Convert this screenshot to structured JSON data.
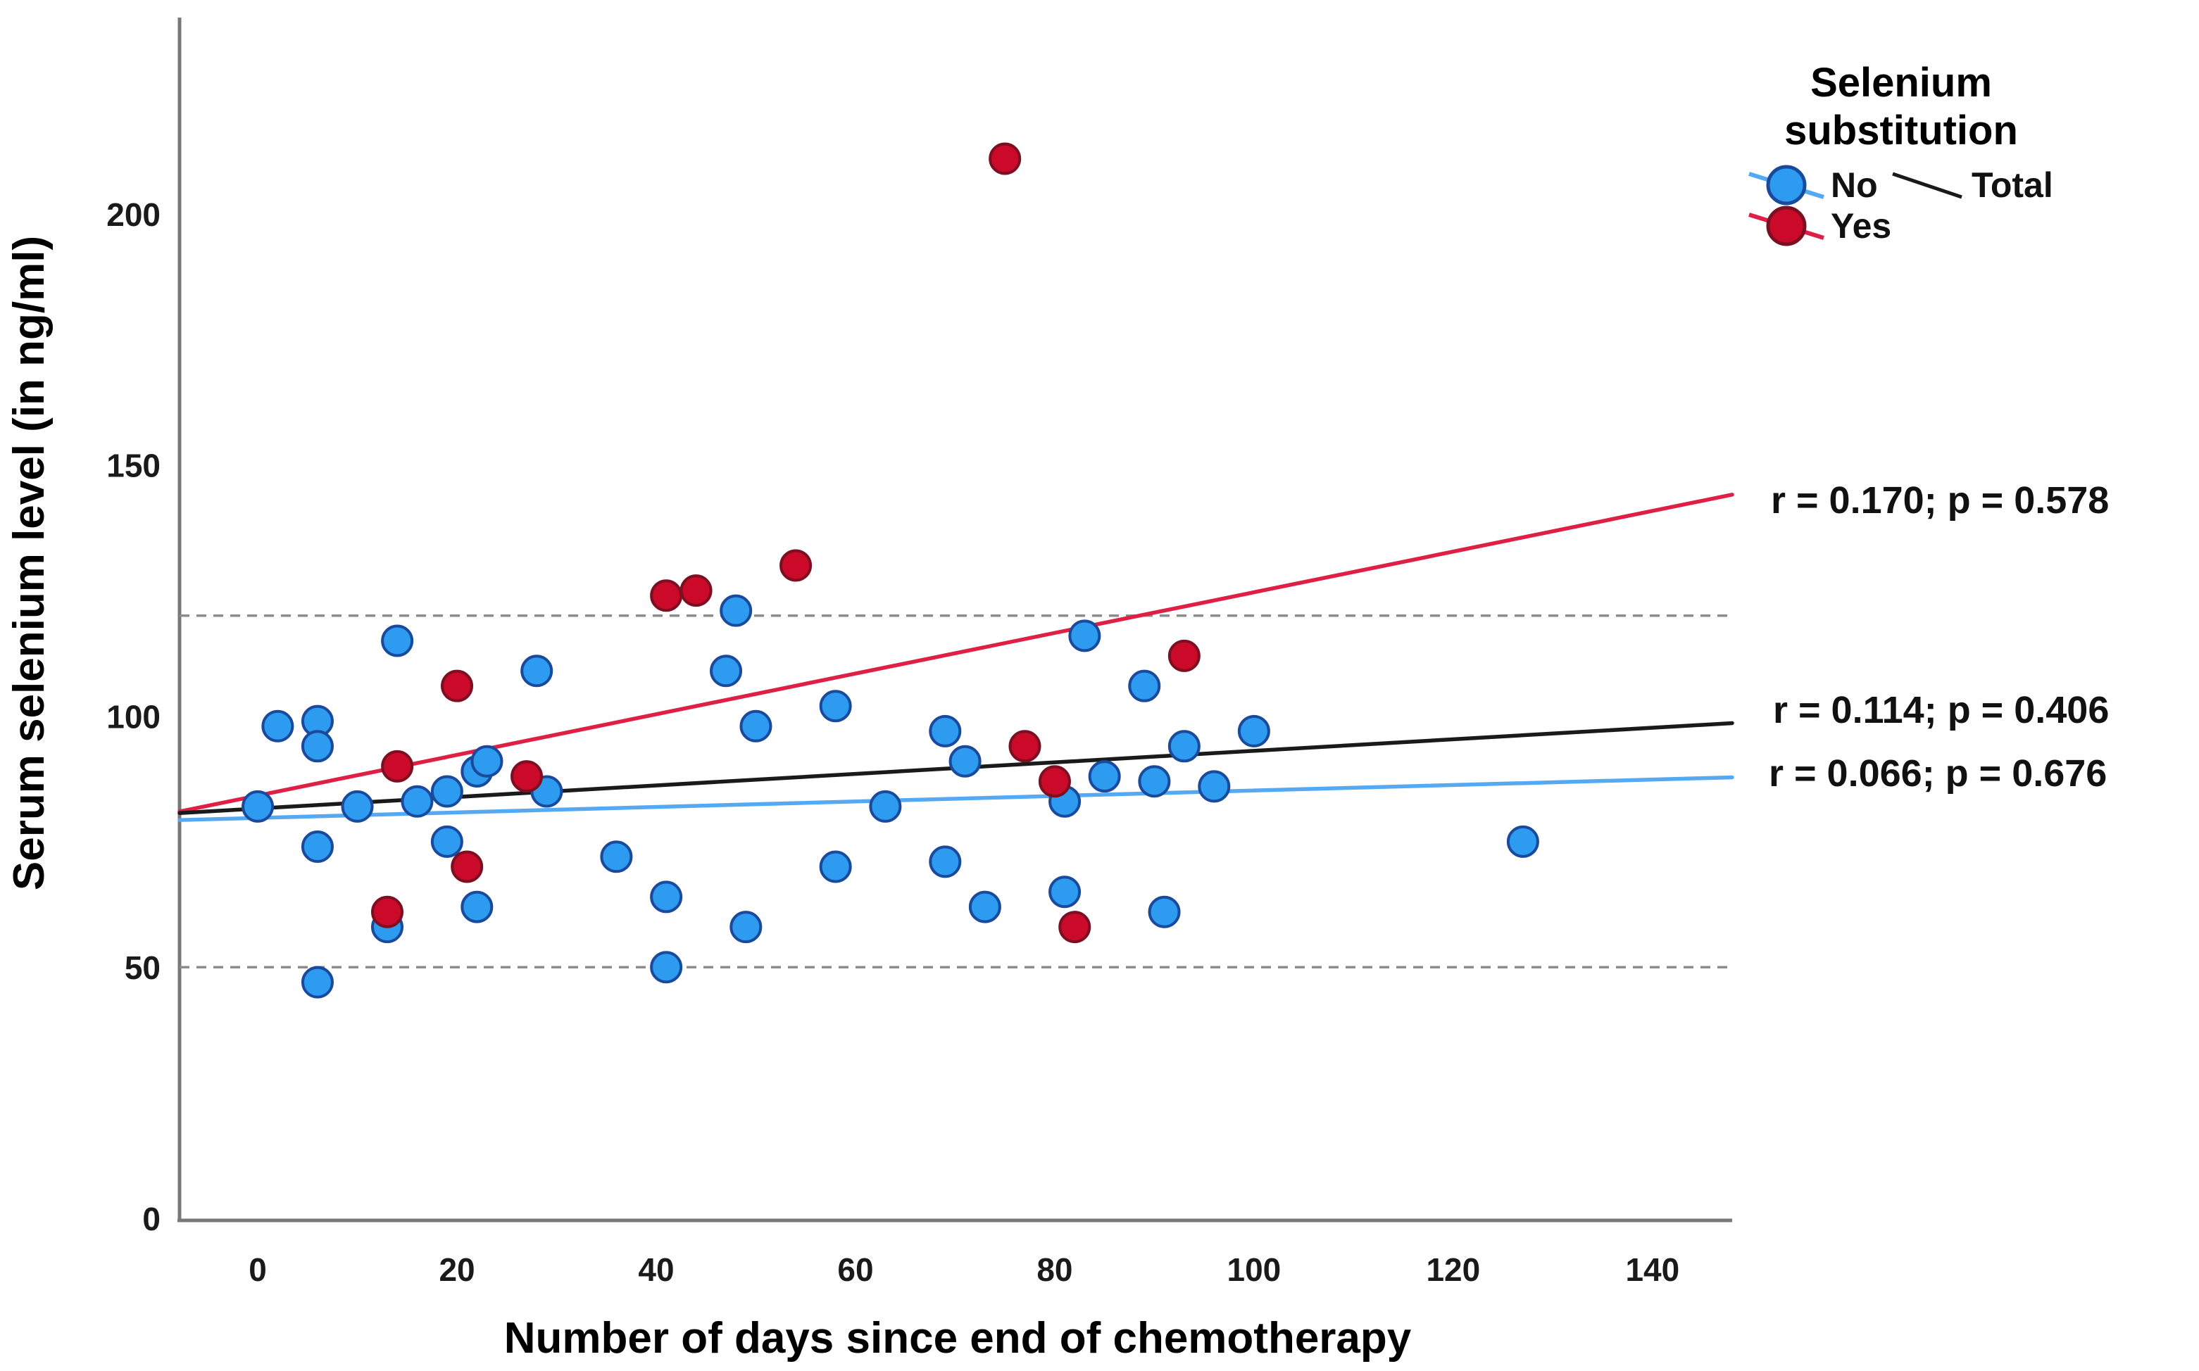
{
  "chart_data": {
    "type": "scatter",
    "title": "",
    "xlabel": "Number of days since end of chemotherapy",
    "ylabel": "Serum selenium level (in ng/ml)",
    "xlim": [
      -7.85,
      148
    ],
    "ylim": [
      0,
      239.1
    ],
    "x_ticks": [
      0,
      20,
      40,
      60,
      80,
      100,
      120,
      140
    ],
    "y_ticks": [
      0,
      50,
      100,
      150,
      200
    ],
    "reference_lines_y": [
      50,
      120
    ],
    "grid": false,
    "legend_position": "outside-top-right",
    "legend": {
      "title_lines": [
        "Selenium",
        "substitution"
      ]
    },
    "series": [
      {
        "id": "no",
        "name": "No",
        "marker_fill": "#2d9bef",
        "marker_edge": "#1a4a9c",
        "line_color": "#55a9f2",
        "points": [
          [
            0,
            82
          ],
          [
            2,
            98
          ],
          [
            6,
            99
          ],
          [
            6,
            94
          ],
          [
            6,
            74
          ],
          [
            6,
            47
          ],
          [
            10,
            82
          ],
          [
            13,
            58
          ],
          [
            14,
            115
          ],
          [
            16,
            83
          ],
          [
            19,
            85
          ],
          [
            19,
            75
          ],
          [
            22,
            89
          ],
          [
            22,
            62
          ],
          [
            23,
            91
          ],
          [
            28,
            109
          ],
          [
            29,
            85
          ],
          [
            36,
            72
          ],
          [
            41,
            64
          ],
          [
            41,
            50
          ],
          [
            47,
            109
          ],
          [
            48,
            121
          ],
          [
            49,
            58
          ],
          [
            50,
            98
          ],
          [
            58,
            102
          ],
          [
            58,
            70
          ],
          [
            63,
            82
          ],
          [
            69,
            97
          ],
          [
            69,
            71
          ],
          [
            71,
            91
          ],
          [
            73,
            62
          ],
          [
            81,
            83
          ],
          [
            81,
            65
          ],
          [
            83,
            116
          ],
          [
            85,
            88
          ],
          [
            89,
            106
          ],
          [
            90,
            87
          ],
          [
            91,
            61
          ],
          [
            93,
            94
          ],
          [
            96,
            86
          ],
          [
            100,
            97
          ],
          [
            127,
            75
          ]
        ],
        "trend": {
          "x": [
            -7.85,
            148
          ],
          "y": [
            79.3,
            87.8
          ]
        },
        "annotation": {
          "text": "r = 0.066; p = 0.676",
          "color": "#169ef5"
        }
      },
      {
        "id": "yes",
        "name": "Yes",
        "marker_fill": "#cb0a2a",
        "marker_edge": "#7c0f22",
        "line_color": "#e01f45",
        "points": [
          [
            13,
            61
          ],
          [
            14,
            90
          ],
          [
            20,
            106
          ],
          [
            21,
            70
          ],
          [
            27,
            88
          ],
          [
            41,
            124
          ],
          [
            44,
            125
          ],
          [
            54,
            130
          ],
          [
            75,
            211
          ],
          [
            77,
            94
          ],
          [
            80,
            87
          ],
          [
            82,
            58
          ],
          [
            93,
            112
          ]
        ],
        "trend": {
          "x": [
            -7.85,
            148
          ],
          "y": [
            81.0,
            144.1
          ]
        },
        "annotation": {
          "text": "r = 0.170; p = 0.578",
          "color": "#e11338"
        }
      },
      {
        "id": "total",
        "name": "Total",
        "marker_fill": "none",
        "marker_edge": "none",
        "line_color": "#1a1a1a",
        "points": [],
        "trend": {
          "x": [
            -7.85,
            148
          ],
          "y": [
            80.7,
            98.6
          ]
        },
        "annotation": {
          "text": "r = 0.114; p = 0.406",
          "color": "#111111"
        }
      }
    ]
  }
}
